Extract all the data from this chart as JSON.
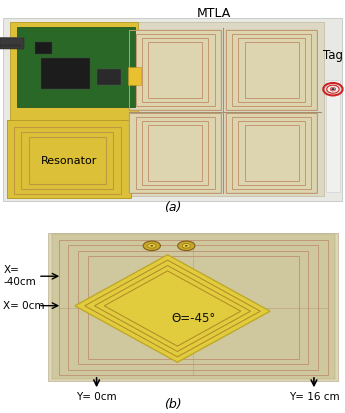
{
  "fig_width": 3.45,
  "fig_height": 4.13,
  "dpi": 100,
  "background_color": "#ffffff",
  "photo_a_bg": "#e8e6e0",
  "photo_b_bg": "#ddd8c8",
  "yellow_board": "#e8c840",
  "yellow_board2": "#d4b830",
  "beige_board": "#d8c8a0",
  "beige_light": "#e4dcc8",
  "copper_trace": "#c89060",
  "pcb_green": "#2a6e28",
  "tag_red": "#cc2222",
  "white_bg": "#f5f5f0",
  "label_a": "(a)",
  "label_b": "(b)",
  "mtla_label": "MTLA",
  "tag_label": "Tag",
  "resonator_label": "Resonator",
  "theta_label": "Θ=-45°",
  "x_label1": "X=",
  "x_label2": "-40cm",
  "x_label3": "X= 0cm",
  "y_label1": "Y= 0cm",
  "y_label2": "Y= 16 cm"
}
